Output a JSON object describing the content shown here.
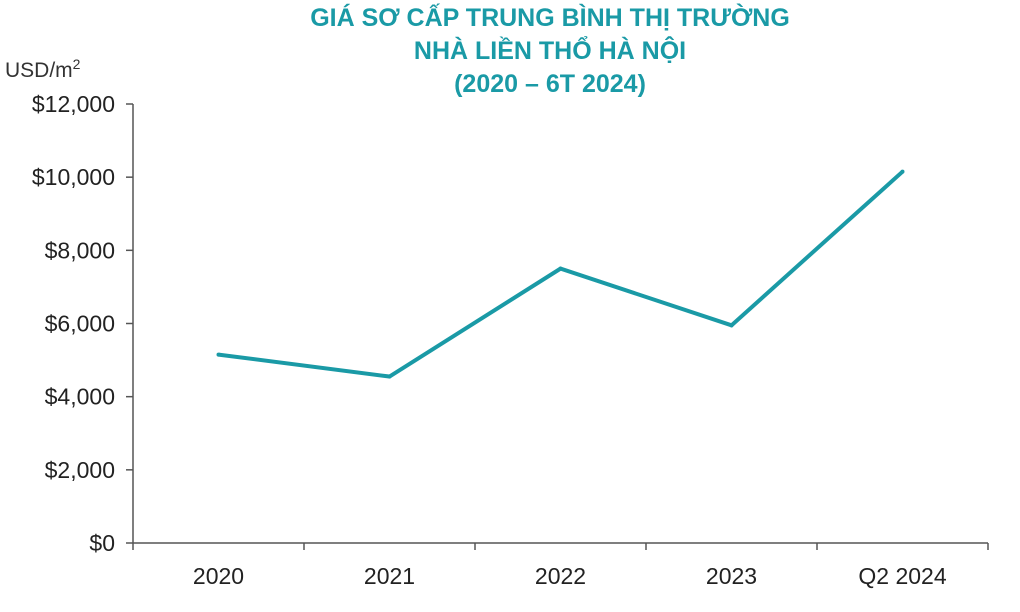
{
  "colors": {
    "accent": "#1a9aa6",
    "axis": "#555555",
    "text": "#222222"
  },
  "title_lines": [
    "GIÁ SƠ CẤP TRUNG BÌNH THỊ TRƯỜNG",
    "NHÀ LIỀN THỔ HÀ NỘI",
    "(2020 – 6T 2024)"
  ],
  "unit_label": "USD/m",
  "unit_superscript": "2",
  "chart_data": {
    "type": "line",
    "title": "GIÁ SƠ CẤP TRUNG BÌNH THỊ TRƯỜNG NHÀ LIỀN THỔ HÀ NỘI (2020 – 6T 2024)",
    "categories": [
      "2020",
      "2021",
      "2022",
      "2023",
      "Q2 2024"
    ],
    "series": [
      {
        "values": [
          5150,
          4550,
          7500,
          5950,
          10150
        ]
      }
    ],
    "ylabel": "USD/m2",
    "ylim": [
      0,
      12000
    ],
    "y_ticks": [
      0,
      2000,
      4000,
      6000,
      8000,
      10000,
      12000
    ],
    "y_tick_labels": [
      "$0",
      "$2,000",
      "$4,000",
      "$6,000",
      "$8,000",
      "$10,000",
      "$12,000"
    ],
    "grid": false,
    "legend": "none"
  }
}
